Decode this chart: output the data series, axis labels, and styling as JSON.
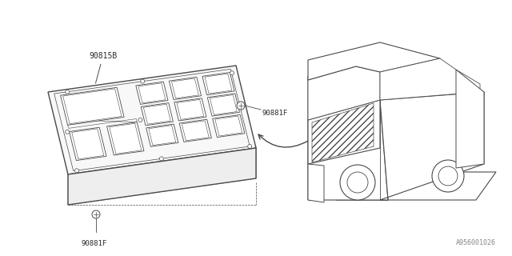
{
  "background_color": "#ffffff",
  "line_color": "#4a4a4a",
  "label_color": "#2a2a2a",
  "labels": {
    "part_label": "90815B",
    "bolt_label_1": "90881F",
    "bolt_label_2": "90881F",
    "diagram_id": "A956001026"
  },
  "figure_size": [
    6.4,
    3.2
  ],
  "dpi": 100
}
